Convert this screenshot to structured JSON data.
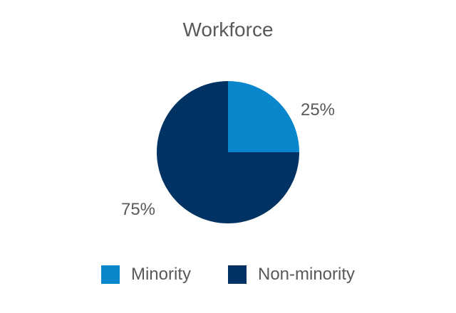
{
  "chart_data": {
    "type": "pie",
    "title": "Workforce",
    "slices": [
      {
        "label": "Minority",
        "value": 25,
        "display": "25%",
        "color": "#0a86cc"
      },
      {
        "label": "Non-minority",
        "value": 75,
        "display": "75%",
        "color": "#003263"
      }
    ],
    "legend": {
      "position": "bottom"
    },
    "start_angle": "12 o'clock",
    "direction": "clockwise"
  }
}
